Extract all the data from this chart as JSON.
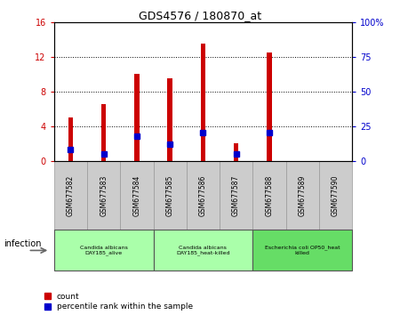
{
  "title": "GDS4576 / 180870_at",
  "samples": [
    "GSM677582",
    "GSM677583",
    "GSM677584",
    "GSM677585",
    "GSM677586",
    "GSM677587",
    "GSM677588",
    "GSM677589",
    "GSM677590"
  ],
  "counts": [
    5.0,
    6.5,
    10.0,
    9.5,
    13.5,
    2.0,
    12.5,
    0.0,
    0.0
  ],
  "percentile_ranks": [
    8.0,
    5.0,
    18.0,
    12.0,
    20.0,
    5.0,
    20.0,
    0.0,
    0.0
  ],
  "ylim_left": [
    0,
    16
  ],
  "ylim_right": [
    0,
    100
  ],
  "yticks_left": [
    0,
    4,
    8,
    12,
    16
  ],
  "yticks_right": [
    0,
    25,
    50,
    75,
    100
  ],
  "yticklabels_right": [
    "0",
    "25",
    "50",
    "75",
    "100%"
  ],
  "bar_color": "#cc0000",
  "percentile_color": "#0000cc",
  "groups": [
    {
      "label": "Candida albicans\nDAY185_alive",
      "start": 0,
      "end": 3,
      "color": "#aaffaa"
    },
    {
      "label": "Candida albicans\nDAY185_heat-killed",
      "start": 3,
      "end": 6,
      "color": "#aaffaa"
    },
    {
      "label": "Escherichia coli OP50_heat\nkilled",
      "start": 6,
      "end": 9,
      "color": "#66dd66"
    }
  ],
  "group_label": "infection",
  "legend_count_label": "count",
  "legend_percentile_label": "percentile rank within the sample",
  "bar_width": 0.15,
  "bg_color": "#ffffff",
  "plot_bg": "#ffffff",
  "tick_area_color": "#cccccc"
}
